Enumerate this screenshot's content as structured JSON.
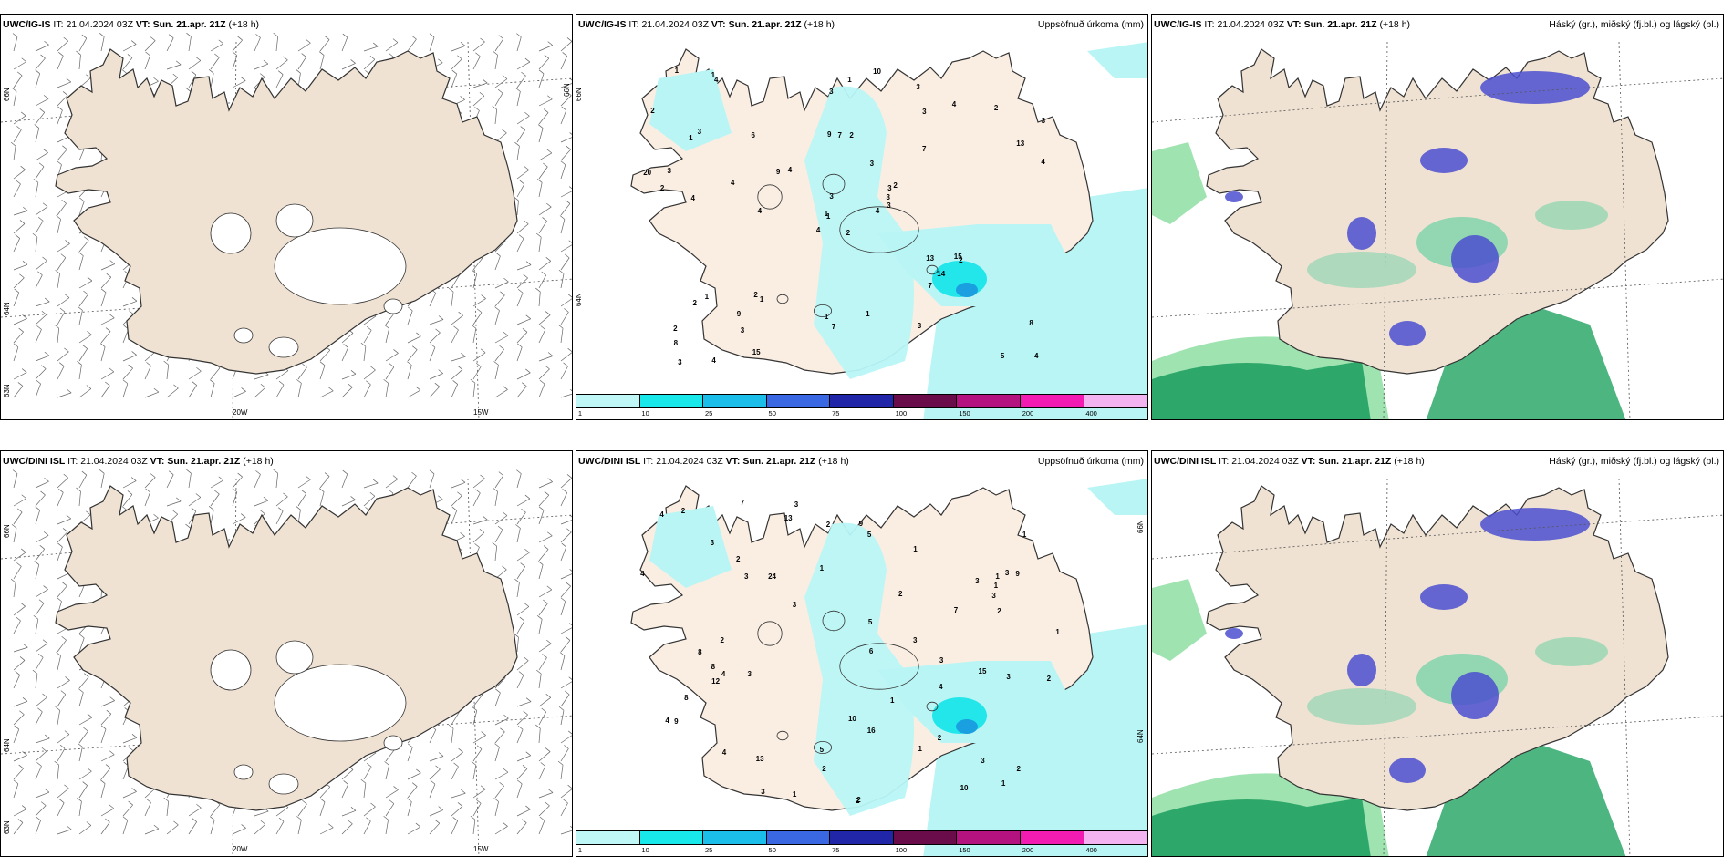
{
  "rows": [
    {
      "model": "UWC/IG-IS",
      "it_label": "IT:",
      "it_value": "21.04.2024 03Z",
      "vt_label": "VT:",
      "vt_value": "Sun. 21.apr. 21Z",
      "lead": "(+18 h)"
    },
    {
      "model": "UWC/DINI ISL",
      "it_label": "IT:",
      "it_value": "21.04.2024 03Z",
      "vt_label": "VT:",
      "vt_value": "Sun. 21.apr. 21Z",
      "lead": "(+18 h)"
    }
  ],
  "panel_titles": {
    "precip": "Uppsöfnuð úrkoma (mm)",
    "cloud": "Háský (gr.), miðský (fj.bl.) og lágský (bl.)"
  },
  "axes": {
    "lat_66": "66N",
    "lat_64": "64N",
    "lat_63": "63N",
    "lon_20": "20W",
    "lon_15": "15W"
  },
  "colorbar": {
    "ticks": [
      "1",
      "10",
      "25",
      "50",
      "75",
      "100",
      "150",
      "200",
      "400"
    ],
    "colors": [
      "#bff7f7",
      "#19e8ea",
      "#1bbde9",
      "#3a67e2",
      "#2125a8",
      "#6a0c4a",
      "#b4127f",
      "#f21cb3",
      "#f3b3f0"
    ]
  },
  "precip_values_top": [
    "2",
    "1",
    "1",
    "2",
    "3",
    "1",
    "3",
    "2",
    "3",
    "4",
    "4",
    "4",
    "4",
    "3",
    "4",
    "7",
    "4",
    "9",
    "3",
    "1",
    "4",
    "8",
    "3",
    "7",
    "2",
    "2",
    "3",
    "3",
    "2",
    "13",
    "4",
    "1",
    "1",
    "3",
    "6",
    "4",
    "2",
    "5",
    "8",
    "15",
    "10",
    "9",
    "4",
    "7",
    "15",
    "20",
    "3",
    "3",
    "7",
    "3",
    "2",
    "13",
    "2",
    "14",
    "3",
    "9",
    "1",
    "1",
    "1",
    "2",
    "1",
    "4",
    "3"
  ],
  "precip_values_bottom": [
    "2",
    "1",
    "3",
    "1",
    "2",
    "3",
    "5",
    "2",
    "1",
    "3",
    "4",
    "7",
    "9",
    "3",
    "3",
    "8",
    "1",
    "2",
    "3",
    "3",
    "1",
    "1",
    "2",
    "1",
    "4",
    "3",
    "13",
    "10",
    "5",
    "3",
    "8",
    "1",
    "13",
    "12",
    "10",
    "9",
    "4",
    "2",
    "4",
    "16",
    "24",
    "8",
    "6",
    "4",
    "3",
    "5",
    "9",
    "3",
    "1",
    "2",
    "2",
    "3",
    "3",
    "7",
    "15",
    "2",
    "2",
    "2",
    "1",
    "2",
    "4"
  ],
  "map_colors": {
    "land": "#efe2d3",
    "land_light": "#faeee3",
    "glacier": "#ffffff",
    "coast": "#333333",
    "grid": "#555555",
    "precip_light": "#b9f5f5",
    "precip_mid": "#22e6ea",
    "precip_dark": "#1a9fe0",
    "low_cloud": "#2ea86a",
    "low_cloud_light": "#9fe3b1",
    "mid_cloud": "#5fcfa0",
    "high_cloud": "#4b4fcf"
  }
}
